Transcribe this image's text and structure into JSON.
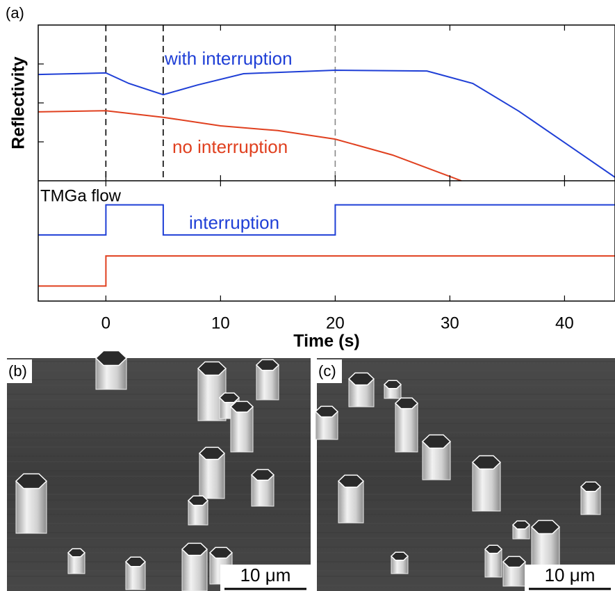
{
  "chart_data": [
    {
      "type": "line",
      "panel_label": "(a)",
      "ylabel": "Reflectivity",
      "xlim": [
        -5.9,
        44.4
      ],
      "ylim": [
        0,
        4
      ],
      "yticks": [
        1,
        2,
        3
      ],
      "vlines": [
        {
          "value": 0,
          "color": "#000000"
        },
        {
          "value": 5,
          "color": "#000000"
        },
        {
          "value": 20,
          "color": "#888888"
        }
      ],
      "series": [
        {
          "name": "with interruption",
          "color": "#1f3fd6",
          "x": [
            -5.9,
            0,
            2,
            5,
            8,
            12,
            20,
            28,
            32,
            36,
            40,
            44.4
          ],
          "values": [
            2.73,
            2.77,
            2.5,
            2.21,
            2.46,
            2.75,
            2.84,
            2.82,
            2.5,
            1.79,
            0.98,
            0.09
          ]
        },
        {
          "name": "no interruption",
          "color": "#e0401f",
          "x": [
            -5.9,
            0,
            5,
            10,
            15,
            20,
            25,
            31
          ],
          "values": [
            1.77,
            1.8,
            1.63,
            1.41,
            1.29,
            1.07,
            0.66,
            0
          ]
        }
      ]
    },
    {
      "type": "line",
      "ylabel": "TMGa flow",
      "xlabel": "Time (s)",
      "xlim": [
        -5.9,
        44.4
      ],
      "xticks": [
        0,
        10,
        20,
        30,
        40
      ],
      "ylim": [
        0,
        4
      ],
      "annotation": "interruption",
      "series": [
        {
          "color": "#1f3fd6",
          "x": [
            -5.9,
            0,
            0,
            5,
            5,
            20,
            20,
            44.4
          ],
          "values": [
            2.2,
            2.2,
            3.2,
            3.2,
            2.2,
            2.2,
            3.2,
            3.2
          ]
        },
        {
          "color": "#e0401f",
          "x": [
            -5.9,
            0,
            0,
            44.4
          ],
          "values": [
            0.5,
            0.5,
            1.5,
            1.5
          ]
        }
      ]
    }
  ],
  "images": [
    {
      "label": "(b)",
      "scale_bar": "10 μm"
    },
    {
      "label": "(c)",
      "scale_bar": "10 μm"
    }
  ]
}
